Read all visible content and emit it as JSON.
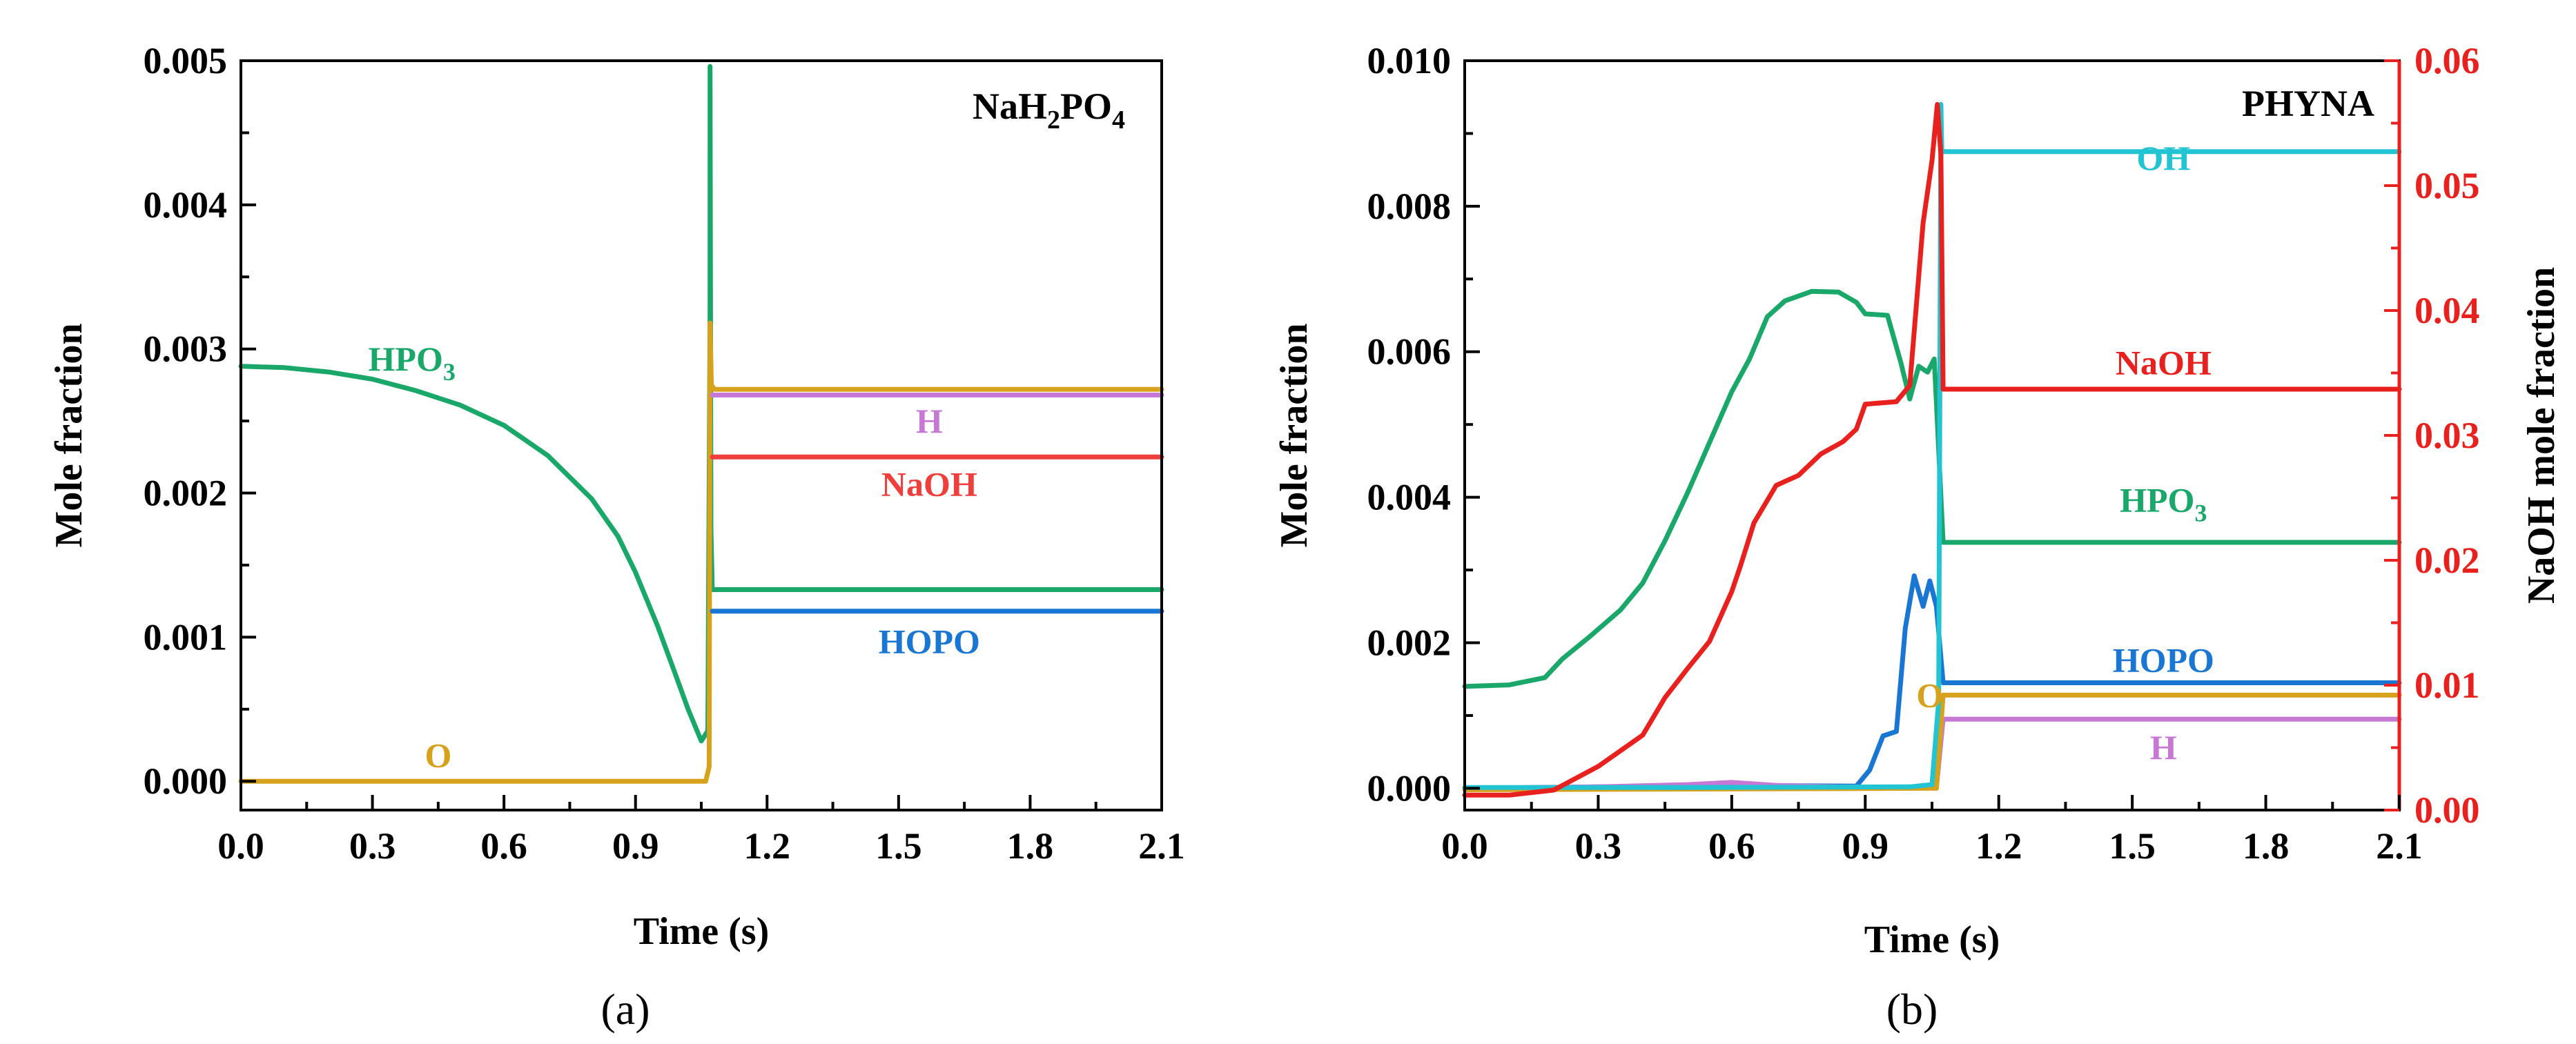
{
  "chart_data": [
    {
      "type": "line",
      "panel_label": "(a)",
      "title": "NaH2PO4",
      "xlabel": "Time (s)",
      "ylabel": "Mole fraction",
      "xlim": [
        0,
        2.1
      ],
      "ylim": [
        -0.0002,
        0.005
      ],
      "xticks": [
        "0.0",
        "0.3",
        "0.6",
        "0.9",
        "1.2",
        "1.5",
        "1.8",
        "2.1"
      ],
      "yticks": [
        "0.000",
        "0.001",
        "0.002",
        "0.003",
        "0.004",
        "0.005"
      ],
      "series": [
        {
          "name": "HPO3",
          "label_main": "HPO",
          "label_sub": "3",
          "color": "#1aa86a",
          "label_at": [
            0.39,
            0.00285
          ],
          "points": [
            [
              0.0,
              0.00288
            ],
            [
              0.1,
              0.00287
            ],
            [
              0.2,
              0.00284
            ],
            [
              0.3,
              0.00279
            ],
            [
              0.4,
              0.00271
            ],
            [
              0.5,
              0.00261
            ],
            [
              0.6,
              0.00247
            ],
            [
              0.7,
              0.00226
            ],
            [
              0.8,
              0.00196
            ],
            [
              0.86,
              0.0017
            ],
            [
              0.9,
              0.00145
            ],
            [
              0.95,
              0.00108
            ],
            [
              0.99,
              0.00075
            ],
            [
              1.02,
              0.0005
            ],
            [
              1.05,
              0.00028
            ],
            [
              1.065,
              0.00035
            ],
            [
              1.07,
              0.00326
            ],
            [
              1.07,
              0.00496
            ],
            [
              1.072,
              0.00175
            ],
            [
              1.075,
              0.00133
            ],
            [
              2.1,
              0.00133
            ]
          ]
        },
        {
          "name": "O",
          "label_main": "O",
          "label_sub": "",
          "color": "#d6a21c",
          "label_at": [
            0.45,
            0.0001
          ],
          "points": [
            [
              0.0,
              0.0
            ],
            [
              1.06,
              0.0
            ],
            [
              1.068,
              0.0001
            ],
            [
              1.07,
              0.00318
            ],
            [
              1.073,
              0.00275
            ],
            [
              1.08,
              0.00272
            ],
            [
              2.1,
              0.00272
            ]
          ]
        },
        {
          "name": "H",
          "label_main": "H",
          "label_sub": "",
          "color": "#c678d4",
          "label_at": [
            1.57,
            0.00242
          ],
          "points": [
            [
              1.075,
              0.00268
            ],
            [
              2.1,
              0.00268
            ]
          ]
        },
        {
          "name": "NaOH",
          "label_main": "NaOH",
          "label_sub": "",
          "color": "#ee3f3c",
          "label_at": [
            1.57,
            0.00198
          ],
          "points": [
            [
              1.075,
              0.00225
            ],
            [
              2.1,
              0.00225
            ]
          ]
        },
        {
          "name": "HOPO",
          "label_main": "HOPO",
          "label_sub": "",
          "color": "#1976d2",
          "label_at": [
            1.57,
            0.00089
          ],
          "points": [
            [
              1.075,
              0.00118
            ],
            [
              2.1,
              0.00118
            ]
          ]
        }
      ]
    },
    {
      "type": "line",
      "panel_label": "(b)",
      "title": "PHYNA",
      "xlabel": "Time (s)",
      "ylabel": "Mole fraction",
      "y2label": "NaOH mole fraction",
      "y2color": "#e8201e",
      "xlim": [
        0,
        2.1
      ],
      "ylim": [
        -0.0003,
        0.01
      ],
      "y2lim": [
        0,
        0.06
      ],
      "xticks": [
        "0.0",
        "0.3",
        "0.6",
        "0.9",
        "1.2",
        "1.5",
        "1.8",
        "2.1"
      ],
      "yticks": [
        "0.000",
        "0.002",
        "0.004",
        "0.006",
        "0.008",
        "0.010"
      ],
      "y2ticks": [
        "0.00",
        "0.01",
        "0.02",
        "0.03",
        "0.04",
        "0.05",
        "0.06"
      ],
      "series": [
        {
          "name": "HPO3",
          "axis": "left",
          "label_main": "HPO",
          "label_sub": "3",
          "color": "#1aa86a",
          "label_at": [
            1.57,
            0.0038
          ],
          "points": [
            [
              0.0,
              0.0014
            ],
            [
              0.1,
              0.00142
            ],
            [
              0.18,
              0.00152
            ],
            [
              0.22,
              0.00178
            ],
            [
              0.28,
              0.00208
            ],
            [
              0.35,
              0.00245
            ],
            [
              0.4,
              0.00282
            ],
            [
              0.45,
              0.0034
            ],
            [
              0.5,
              0.00405
            ],
            [
              0.55,
              0.00475
            ],
            [
              0.6,
              0.00545
            ],
            [
              0.64,
              0.0059
            ],
            [
              0.68,
              0.00648
            ],
            [
              0.72,
              0.0067
            ],
            [
              0.78,
              0.00683
            ],
            [
              0.84,
              0.00682
            ],
            [
              0.88,
              0.00668
            ],
            [
              0.9,
              0.00652
            ],
            [
              0.95,
              0.0065
            ],
            [
              0.98,
              0.00585
            ],
            [
              1.0,
              0.00535
            ],
            [
              1.02,
              0.0058
            ],
            [
              1.04,
              0.00572
            ],
            [
              1.055,
              0.0059
            ],
            [
              1.06,
              0.0053
            ],
            [
              1.075,
              0.00338
            ],
            [
              2.1,
              0.00338
            ]
          ]
        },
        {
          "name": "HOPO",
          "axis": "left",
          "label_main": "HOPO",
          "label_sub": "",
          "color": "#1976d2",
          "label_at": [
            1.57,
            0.0016
          ],
          "points": [
            [
              0.0,
              0.0
            ],
            [
              0.6,
              4e-05
            ],
            [
              0.88,
              3e-05
            ],
            [
              0.91,
              0.00025
            ],
            [
              0.94,
              0.00072
            ],
            [
              0.97,
              0.00078
            ],
            [
              0.99,
              0.0022
            ],
            [
              1.01,
              0.00292
            ],
            [
              1.03,
              0.0025
            ],
            [
              1.045,
              0.00285
            ],
            [
              1.06,
              0.0025
            ],
            [
              1.075,
              0.00145
            ],
            [
              2.1,
              0.00145
            ]
          ]
        },
        {
          "name": "H",
          "axis": "left",
          "label_main": "H",
          "label_sub": "",
          "color": "#c678d4",
          "label_at": [
            1.57,
            0.0004
          ],
          "points": [
            [
              0.0,
              0.0
            ],
            [
              0.3,
              2e-05
            ],
            [
              0.5,
              5e-05
            ],
            [
              0.6,
              8e-05
            ],
            [
              0.7,
              4e-05
            ],
            [
              0.9,
              1e-05
            ],
            [
              1.06,
              1e-05
            ],
            [
              1.075,
              0.00095
            ],
            [
              2.1,
              0.00095
            ]
          ]
        },
        {
          "name": "O",
          "axis": "left",
          "label_main": "O",
          "label_sub": "",
          "color": "#d6a21c",
          "label_at": [
            1.045,
            0.00112
          ],
          "points": [
            [
              0.0,
              -2e-05
            ],
            [
              1.06,
              0.0
            ],
            [
              1.075,
              0.00128
            ],
            [
              2.1,
              0.00128
            ]
          ]
        },
        {
          "name": "OH",
          "axis": "left",
          "label_main": "OH",
          "label_sub": "",
          "color": "#22c3d2",
          "label_at": [
            1.57,
            0.0085
          ],
          "points": [
            [
              0.0,
              1e-05
            ],
            [
              0.5,
              1e-05
            ],
            [
              1.0,
              2e-05
            ],
            [
              1.05,
              5e-05
            ],
            [
              1.065,
              0.0012
            ],
            [
              1.07,
              0.0094
            ],
            [
              1.072,
              0.00875
            ],
            [
              2.1,
              0.00875
            ]
          ]
        },
        {
          "name": "NaOH",
          "axis": "right",
          "label_main": "NaOH",
          "label_sub": "",
          "color": "#e8201e",
          "label_at": [
            1.57,
            0.0349
          ],
          "points": [
            [
              0.0,
              0.0012
            ],
            [
              0.1,
              0.0012
            ],
            [
              0.2,
              0.0016
            ],
            [
              0.3,
              0.0035
            ],
            [
              0.4,
              0.006
            ],
            [
              0.45,
              0.009
            ],
            [
              0.5,
              0.0113
            ],
            [
              0.55,
              0.0135
            ],
            [
              0.6,
              0.0175
            ],
            [
              0.62,
              0.0196
            ],
            [
              0.65,
              0.023
            ],
            [
              0.7,
              0.026
            ],
            [
              0.75,
              0.0268
            ],
            [
              0.8,
              0.0285
            ],
            [
              0.85,
              0.0295
            ],
            [
              0.88,
              0.0305
            ],
            [
              0.9,
              0.0325
            ],
            [
              0.97,
              0.0327
            ],
            [
              1.0,
              0.034
            ],
            [
              1.03,
              0.047
            ],
            [
              1.05,
              0.052
            ],
            [
              1.062,
              0.0565
            ],
            [
              1.07,
              0.0525
            ],
            [
              1.075,
              0.0337
            ],
            [
              2.1,
              0.0337
            ]
          ]
        }
      ]
    }
  ]
}
